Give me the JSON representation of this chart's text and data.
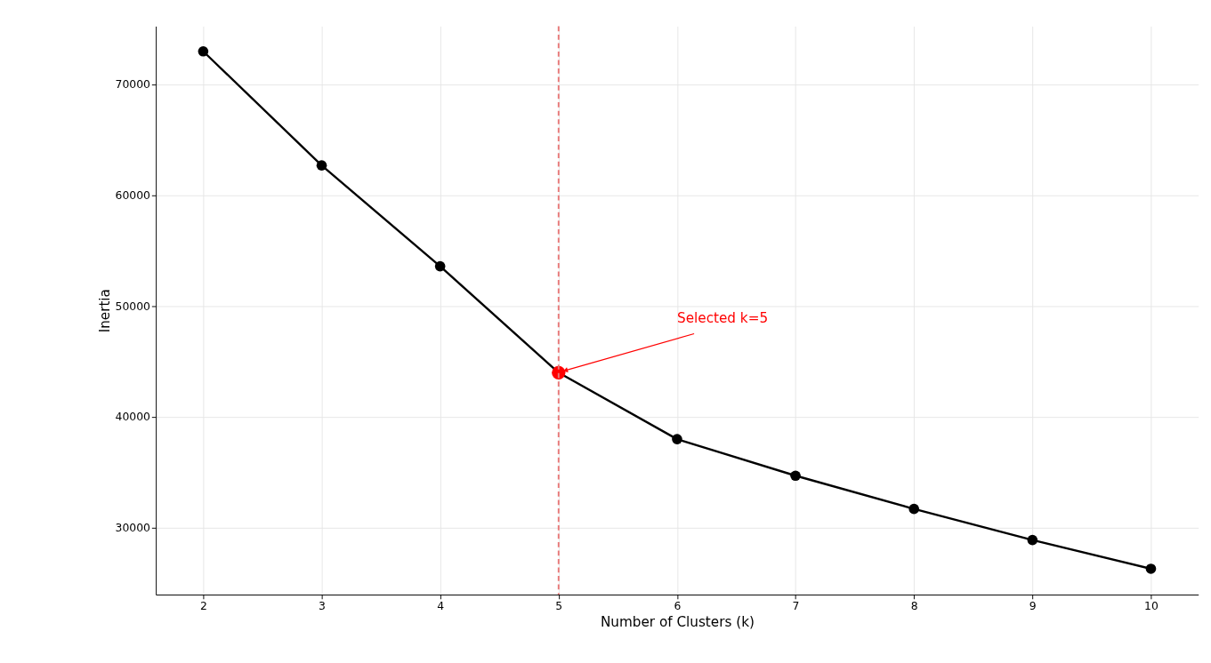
{
  "chart_data": {
    "type": "line",
    "xlabel": "Number of Clusters (k)",
    "ylabel": "Inertia",
    "xlim": [
      1.6,
      10.4
    ],
    "ylim": [
      23970,
      75270
    ],
    "xticks": [
      2,
      3,
      4,
      5,
      6,
      7,
      8,
      9,
      10
    ],
    "yticks": [
      30000,
      40000,
      50000,
      60000,
      70000
    ],
    "grid": true,
    "marker": "circle",
    "line_style": "solid",
    "series": [
      {
        "color": "#000000",
        "x": [
          2,
          3,
          4,
          5,
          6,
          7,
          8,
          9,
          10
        ],
        "values": [
          73000,
          62700,
          53600,
          44000,
          38000,
          34700,
          31700,
          28900,
          26300
        ]
      },
      {
        "type": "scatter",
        "color": "#ff0000",
        "x": [
          5
        ],
        "values": [
          44000
        ]
      }
    ],
    "ref_lines": [
      {
        "axis": "x",
        "value": 5,
        "color": "#e87878",
        "line_style": "dashed"
      }
    ],
    "annotations": [
      {
        "text": "Selected k=5",
        "x": 5,
        "y": 44000
      }
    ]
  }
}
